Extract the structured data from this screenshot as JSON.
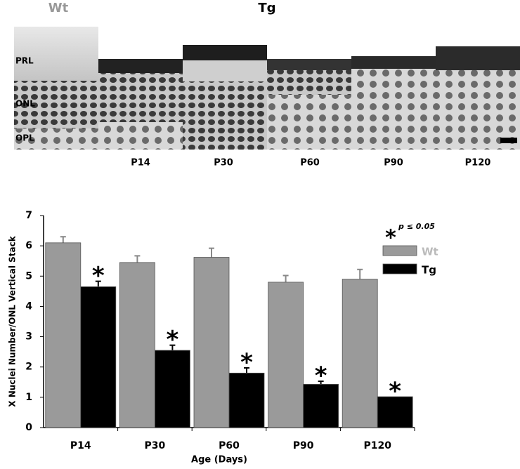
{
  "image_panel": {
    "group_labels": [
      "Wt",
      "Tg"
    ],
    "layer_labels": [
      "PRL",
      "ONL",
      "OPL"
    ],
    "time_labels": [
      "P14",
      "P30",
      "P60",
      "P90",
      "P120"
    ]
  },
  "chart_data": {
    "type": "bar",
    "y_label": "X Nuclei Number/ONL Vertical Stack",
    "x_label": "Age (Days)",
    "categories": [
      "P14",
      "P30",
      "P60",
      "P90",
      "P120"
    ],
    "series": [
      {
        "name": "Wt",
        "color": "#9a9a9a",
        "values": [
          6.1,
          5.45,
          5.62,
          4.8,
          4.9
        ],
        "errors": [
          0.2,
          0.22,
          0.3,
          0.22,
          0.32
        ]
      },
      {
        "name": "Tg",
        "color": "#000000",
        "values": [
          4.65,
          2.55,
          1.8,
          1.43,
          1.02
        ],
        "errors": [
          0.18,
          0.17,
          0.17,
          0.1,
          null
        ],
        "significant": [
          true,
          true,
          true,
          true,
          true
        ]
      }
    ],
    "significance": {
      "marker": "*",
      "label": "p ≤ 0.05"
    },
    "ylim": [
      0,
      7
    ],
    "yticks": [
      0,
      1,
      2,
      3,
      4,
      5,
      6,
      7
    ],
    "grid": false
  }
}
